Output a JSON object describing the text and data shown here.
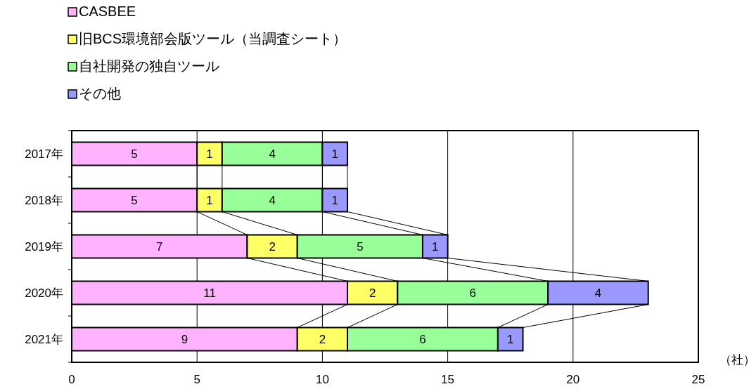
{
  "chart_data": {
    "type": "bar",
    "orientation": "horizontal",
    "stacked": true,
    "categories": [
      "2017年",
      "2018年",
      "2019年",
      "2020年",
      "2021年"
    ],
    "series": [
      {
        "name": "CASBEE",
        "color": "#ffb3ff",
        "values": [
          5,
          5,
          7,
          11,
          9
        ]
      },
      {
        "name": "旧BCS環境部会版ツール（当調査シート）",
        "color": "#ffff66",
        "values": [
          1,
          1,
          2,
          2,
          2
        ]
      },
      {
        "name": "自社開発の独自ツール",
        "color": "#99ff99",
        "values": [
          4,
          4,
          5,
          6,
          6
        ]
      },
      {
        "name": "その他",
        "color": "#9999ff",
        "values": [
          1,
          1,
          1,
          4,
          1
        ]
      }
    ],
    "xlim": [
      0,
      25
    ],
    "xticks": [
      0,
      5,
      10,
      15,
      20,
      25
    ],
    "xlabel": "（社）",
    "grid": "x",
    "legend": "top left",
    "data_labels": true
  }
}
